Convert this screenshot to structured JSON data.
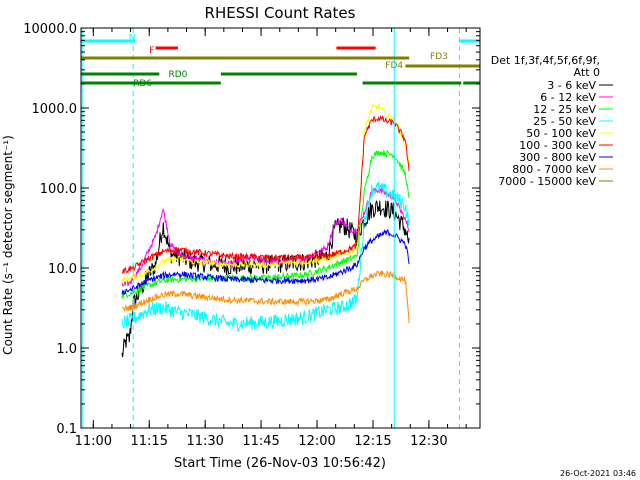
{
  "chart_data": {
    "type": "line",
    "title": "RHESSI Count Rates",
    "xlabel": "Start Time (26-Nov-03 10:56:42)",
    "ylabel": "Count Rate (s⁻¹ detector segment⁻¹)",
    "yscale": "log",
    "ylim": [
      0.1,
      10000
    ],
    "xlim_minutes_after_start": [
      0,
      107
    ],
    "x_ticks": [
      "11:00",
      "11:15",
      "11:30",
      "11:45",
      "12:00",
      "12:15",
      "12:30"
    ],
    "x_tick_minutes": [
      3.3,
      18.3,
      33.3,
      48.3,
      63.3,
      78.3,
      93.3
    ],
    "y_ticks": [
      "0.1",
      "1.0",
      "10.0",
      "100.0",
      "1000.0",
      "10000.0"
    ],
    "legend": {
      "header": [
        "Det 1f,3f,4f,5f,6f,9f,",
        "Att 0"
      ],
      "placement": "right"
    },
    "series": [
      {
        "name": "3 - 6 keV",
        "color": "#000000",
        "x": [
          11,
          12,
          13,
          14,
          18,
          20,
          22,
          24,
          26,
          30,
          40,
          50,
          60,
          66,
          68,
          70,
          72,
          74,
          76,
          78,
          80,
          82,
          84,
          87,
          88
        ],
        "y": [
          0.8,
          1.2,
          1.3,
          3.5,
          8,
          11,
          35,
          15,
          14,
          12,
          10.5,
          11,
          12,
          14,
          30,
          35,
          30,
          25,
          40,
          55,
          60,
          55,
          50,
          30,
          20
        ]
      },
      {
        "name": "6 - 12 keV",
        "color": "#ff00ff",
        "x": [
          11,
          13,
          16,
          18,
          20,
          22,
          24,
          26,
          30,
          40,
          46,
          50,
          55,
          60,
          66,
          68,
          70,
          72,
          74,
          76,
          78,
          80,
          82,
          84,
          87,
          88
        ],
        "y": [
          6,
          6.5,
          10,
          16,
          25,
          55,
          20,
          15,
          13,
          11,
          14,
          12,
          12,
          13,
          18,
          35,
          40,
          30,
          30,
          50,
          90,
          95,
          85,
          75,
          40,
          30
        ]
      },
      {
        "name": "12 - 25 keV",
        "color": "#00ff00",
        "x": [
          11,
          14,
          18,
          22,
          26,
          30,
          40,
          50,
          60,
          66,
          70,
          74,
          76,
          78,
          80,
          82,
          84,
          87,
          88
        ],
        "y": [
          4.5,
          5,
          6,
          7,
          7.2,
          7.3,
          7.5,
          7.5,
          8.2,
          10,
          12,
          14,
          90,
          250,
          280,
          270,
          260,
          150,
          70
        ]
      },
      {
        "name": "25 - 50 keV",
        "color": "#00ffff",
        "x": [
          11,
          14,
          18,
          22,
          26,
          30,
          40,
          50,
          60,
          66,
          70,
          74,
          76,
          78,
          80,
          82,
          84,
          87,
          88
        ],
        "y": [
          2,
          2.3,
          3,
          3.2,
          2.8,
          2.6,
          2.0,
          2.1,
          2.4,
          3,
          3.2,
          4,
          40,
          95,
          100,
          90,
          80,
          60,
          35
        ]
      },
      {
        "name": "50 - 100 keV",
        "color": "#ffff00",
        "x": [
          11,
          14,
          18,
          22,
          26,
          30,
          40,
          50,
          60,
          66,
          70,
          74,
          76,
          78,
          80,
          82,
          84,
          87,
          88
        ],
        "y": [
          7,
          7.5,
          9,
          12,
          13,
          12,
          11,
          11,
          12,
          13,
          15,
          17,
          500,
          1000,
          1050,
          800,
          750,
          350,
          200
        ]
      },
      {
        "name": "100 - 300 keV",
        "color": "#ff0000",
        "x": [
          11,
          14,
          18,
          22,
          26,
          30,
          40,
          50,
          60,
          66,
          70,
          74,
          76,
          78,
          80,
          82,
          84,
          87,
          88
        ],
        "y": [
          9,
          10,
          13,
          16,
          17,
          16,
          14,
          13.5,
          13.5,
          14,
          16,
          19,
          450,
          700,
          750,
          680,
          650,
          400,
          150
        ]
      },
      {
        "name": "300 - 800 keV",
        "color": "#0000ff",
        "x": [
          11,
          14,
          18,
          22,
          26,
          30,
          40,
          50,
          60,
          66,
          70,
          74,
          76,
          78,
          80,
          82,
          84,
          87,
          88
        ],
        "y": [
          5,
          5.5,
          7,
          8,
          8.5,
          8,
          7.2,
          7,
          7,
          7.5,
          9,
          11,
          18,
          22,
          25,
          28,
          26,
          20,
          12
        ]
      },
      {
        "name": "800 - 7000 keV",
        "color": "#ff8c00",
        "x": [
          11,
          14,
          18,
          22,
          26,
          30,
          40,
          50,
          60,
          66,
          70,
          74,
          76,
          78,
          80,
          82,
          84,
          87,
          88
        ],
        "y": [
          3,
          3.3,
          4,
          4.6,
          4.8,
          4.5,
          4,
          3.8,
          3.8,
          4,
          4.8,
          5.5,
          7,
          8,
          8.5,
          8.3,
          8,
          7,
          2
        ]
      },
      {
        "name": "7000 - 15000 keV",
        "color": "#808000",
        "x": [],
        "y": []
      }
    ],
    "vertical_markers": [
      {
        "minute": 0.5,
        "style": "solid",
        "color": "#00ffff"
      },
      {
        "minute": 14,
        "style": "dashed",
        "color": "#00ffff"
      },
      {
        "minute": 84,
        "style": "solid",
        "color": "#00ffff"
      },
      {
        "minute": 101.5,
        "style": "dashed",
        "color": "#00ffff"
      }
    ],
    "flag_bars": [
      {
        "label": "N",
        "color": "#00ffff",
        "segments": [
          [
            0,
            14.5
          ],
          [
            101.5,
            107
          ]
        ]
      },
      {
        "label": "F",
        "color": "#ff0000",
        "segments": [
          [
            20,
            26
          ],
          [
            68.5,
            79
          ]
        ]
      },
      {
        "label": "FD4",
        "color": "#808000",
        "segments": [
          [
            0,
            88
          ]
        ]
      },
      {
        "label": "FD3",
        "color": "#808000",
        "segments": [
          [
            87,
            107
          ]
        ]
      },
      {
        "label": "RD0",
        "color": "#008000",
        "segments": [
          [
            0,
            21
          ],
          [
            37.5,
            74
          ]
        ]
      },
      {
        "label": "RD6",
        "color": "#008000",
        "segments": [
          [
            0,
            37.5
          ],
          [
            75.5,
            102
          ],
          [
            102.5,
            107
          ]
        ]
      }
    ]
  },
  "footer": {
    "date_stamp": "26-Oct-2021 03:46"
  }
}
